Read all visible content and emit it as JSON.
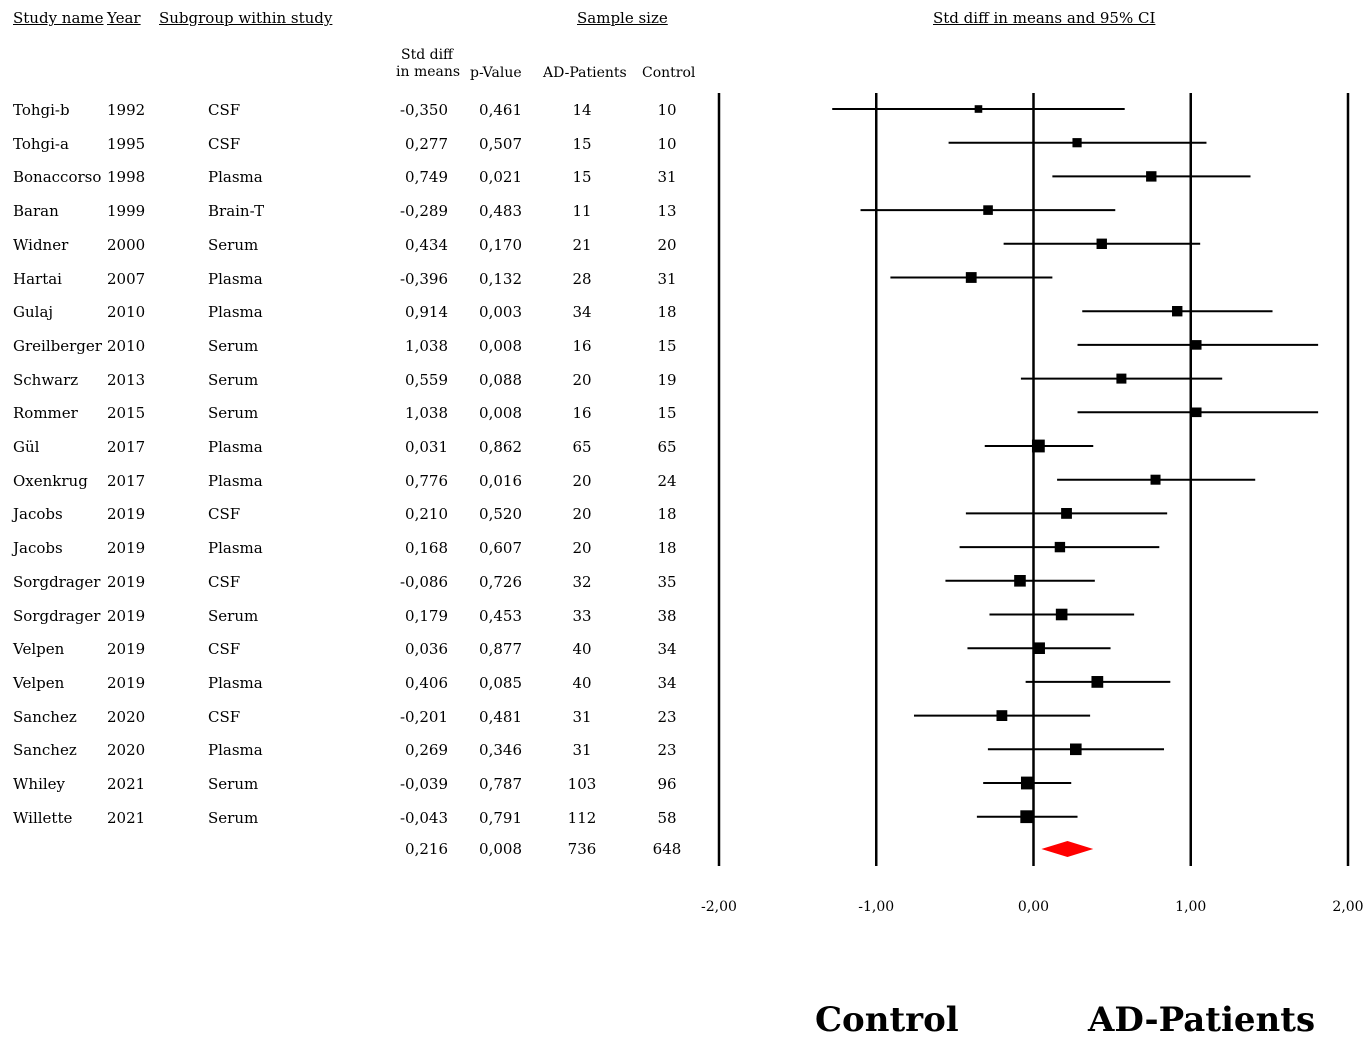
{
  "headers": {
    "study_name": "Study name",
    "year": "Year",
    "subgroup": "Subgroup within study",
    "sample_size": "Sample size",
    "plot": "Std diff in means and 95% CI",
    "smd_line1": "Std diff",
    "smd_line2": "in means",
    "pvalue": "p-Value",
    "ad_patients": "AD-Patients",
    "control": "Control"
  },
  "rows": [
    {
      "name": "Tohgi-b",
      "year": "1992",
      "subgroup": "CSF",
      "smd": "-0,350",
      "p": "0,461",
      "ad": "14",
      "control": "10"
    },
    {
      "name": "Tohgi-a",
      "year": "1995",
      "subgroup": "CSF",
      "smd": "0,277",
      "p": "0,507",
      "ad": "15",
      "control": "10"
    },
    {
      "name": "Bonaccorso",
      "year": "1998",
      "subgroup": "Plasma",
      "smd": "0,749",
      "p": "0,021",
      "ad": "15",
      "control": "31"
    },
    {
      "name": "Baran",
      "year": "1999",
      "subgroup": "Brain-T",
      "smd": "-0,289",
      "p": "0,483",
      "ad": "11",
      "control": "13"
    },
    {
      "name": "Widner",
      "year": "2000",
      "subgroup": "Serum",
      "smd": "0,434",
      "p": "0,170",
      "ad": "21",
      "control": "20"
    },
    {
      "name": "Hartai",
      "year": "2007",
      "subgroup": "Plasma",
      "smd": "-0,396",
      "p": "0,132",
      "ad": "28",
      "control": "31"
    },
    {
      "name": "Gulaj",
      "year": "2010",
      "subgroup": "Plasma",
      "smd": "0,914",
      "p": "0,003",
      "ad": "34",
      "control": "18"
    },
    {
      "name": "Greilberger",
      "year": "2010",
      "subgroup": "Serum",
      "smd": "1,038",
      "p": "0,008",
      "ad": "16",
      "control": "15"
    },
    {
      "name": "Schwarz",
      "year": "2013",
      "subgroup": "Serum",
      "smd": "0,559",
      "p": "0,088",
      "ad": "20",
      "control": "19"
    },
    {
      "name": "Rommer",
      "year": "2015",
      "subgroup": "Serum",
      "smd": "1,038",
      "p": "0,008",
      "ad": "16",
      "control": "15"
    },
    {
      "name": "Gül",
      "year": "2017",
      "subgroup": "Plasma",
      "smd": "0,031",
      "p": "0,862",
      "ad": "65",
      "control": "65"
    },
    {
      "name": "Oxenkrug",
      "year": "2017",
      "subgroup": "Plasma",
      "smd": "0,776",
      "p": "0,016",
      "ad": "20",
      "control": "24"
    },
    {
      "name": "Jacobs",
      "year": "2019",
      "subgroup": "CSF",
      "smd": "0,210",
      "p": "0,520",
      "ad": "20",
      "control": "18"
    },
    {
      "name": "Jacobs",
      "year": "2019",
      "subgroup": "Plasma",
      "smd": "0,168",
      "p": "0,607",
      "ad": "20",
      "control": "18"
    },
    {
      "name": "Sorgdrager",
      "year": "2019",
      "subgroup": "CSF",
      "smd": "-0,086",
      "p": "0,726",
      "ad": "32",
      "control": "35"
    },
    {
      "name": "Sorgdrager",
      "year": "2019",
      "subgroup": "Serum",
      "smd": "0,179",
      "p": "0,453",
      "ad": "33",
      "control": "38"
    },
    {
      "name": "Velpen",
      "year": "2019",
      "subgroup": "CSF",
      "smd": "0,036",
      "p": "0,877",
      "ad": "40",
      "control": "34"
    },
    {
      "name": "Velpen",
      "year": "2019",
      "subgroup": "Plasma",
      "smd": "0,406",
      "p": "0,085",
      "ad": "40",
      "control": "34"
    },
    {
      "name": "Sanchez",
      "year": "2020",
      "subgroup": "CSF",
      "smd": "-0,201",
      "p": "0,481",
      "ad": "31",
      "control": "23"
    },
    {
      "name": "Sanchez",
      "year": "2020",
      "subgroup": "Plasma",
      "smd": "0,269",
      "p": "0,346",
      "ad": "31",
      "control": "23"
    },
    {
      "name": "Whiley",
      "year": "2021",
      "subgroup": "Serum",
      "smd": "-0,039",
      "p": "0,787",
      "ad": "103",
      "control": "96"
    },
    {
      "name": "Willette",
      "year": "2021",
      "subgroup": "Serum",
      "smd": "-0,043",
      "p": "0,791",
      "ad": "112",
      "control": "58"
    }
  ],
  "summary": {
    "smd": "0,216",
    "p": "0,008",
    "ad": "736",
    "control": "648"
  },
  "bottom_labels": {
    "left": "Control",
    "right": "AD-Patients"
  },
  "chart_data": {
    "type": "forest",
    "title": "Std diff in means and 95% CI",
    "xlim": [
      -2,
      2
    ],
    "xticks": [
      -2,
      -1,
      0,
      1,
      2
    ],
    "xtick_labels": [
      "-2,00",
      "-1,00",
      "0,00",
      "1,00",
      "2,00"
    ],
    "studies": [
      {
        "label": "Tohgi-b 1992 CSF",
        "est": -0.35,
        "lo": -1.28,
        "hi": 0.58,
        "weight": 0.2
      },
      {
        "label": "Tohgi-a 1995 CSF",
        "est": 0.277,
        "lo": -0.54,
        "hi": 1.1,
        "weight": 0.4
      },
      {
        "label": "Bonaccorso 1998 Plasma",
        "est": 0.749,
        "lo": 0.12,
        "hi": 1.38,
        "weight": 0.55
      },
      {
        "label": "Baran 1999 Brain-T",
        "est": -0.289,
        "lo": -1.1,
        "hi": 0.52,
        "weight": 0.45
      },
      {
        "label": "Widner 2000 Serum",
        "est": 0.434,
        "lo": -0.19,
        "hi": 1.06,
        "weight": 0.55
      },
      {
        "label": "Hartai 2007 Plasma",
        "est": -0.396,
        "lo": -0.91,
        "hi": 0.12,
        "weight": 0.6
      },
      {
        "label": "Gulaj 2010 Plasma",
        "est": 0.914,
        "lo": 0.31,
        "hi": 1.52,
        "weight": 0.55
      },
      {
        "label": "Greilberger 2010 Serum",
        "est": 1.038,
        "lo": 0.28,
        "hi": 1.81,
        "weight": 0.45
      },
      {
        "label": "Schwarz 2013 Serum",
        "est": 0.559,
        "lo": -0.08,
        "hi": 1.2,
        "weight": 0.5
      },
      {
        "label": "Rommer 2015 Serum",
        "est": 1.038,
        "lo": 0.28,
        "hi": 1.81,
        "weight": 0.45
      },
      {
        "label": "Gül 2017 Plasma",
        "est": 0.031,
        "lo": -0.31,
        "hi": 0.38,
        "weight": 0.85
      },
      {
        "label": "Oxenkrug 2017 Plasma",
        "est": 0.776,
        "lo": 0.15,
        "hi": 1.41,
        "weight": 0.5
      },
      {
        "label": "Jacobs 2019 CSF",
        "est": 0.21,
        "lo": -0.43,
        "hi": 0.85,
        "weight": 0.6
      },
      {
        "label": "Jacobs 2019 Plasma",
        "est": 0.168,
        "lo": -0.47,
        "hi": 0.8,
        "weight": 0.55
      },
      {
        "label": "Sorgdrager 2019 CSF",
        "est": -0.086,
        "lo": -0.56,
        "hi": 0.39,
        "weight": 0.7
      },
      {
        "label": "Sorgdrager 2019 Serum",
        "est": 0.179,
        "lo": -0.28,
        "hi": 0.64,
        "weight": 0.7
      },
      {
        "label": "Velpen 2019 CSF",
        "est": 0.036,
        "lo": -0.42,
        "hi": 0.49,
        "weight": 0.7
      },
      {
        "label": "Velpen 2019 Plasma",
        "est": 0.406,
        "lo": -0.05,
        "hi": 0.87,
        "weight": 0.72
      },
      {
        "label": "Sanchez 2020 CSF",
        "est": -0.201,
        "lo": -0.76,
        "hi": 0.36,
        "weight": 0.6
      },
      {
        "label": "Sanchez 2020 Plasma",
        "est": 0.269,
        "lo": -0.29,
        "hi": 0.83,
        "weight": 0.7
      },
      {
        "label": "Whiley 2021 Serum",
        "est": -0.039,
        "lo": -0.32,
        "hi": 0.24,
        "weight": 0.85
      },
      {
        "label": "Willette 2021 Serum",
        "est": -0.043,
        "lo": -0.36,
        "hi": 0.28,
        "weight": 0.85
      }
    ],
    "summary": {
      "est": 0.216,
      "lo": 0.05,
      "hi": 0.38
    },
    "summary_color": "#ff0000"
  }
}
